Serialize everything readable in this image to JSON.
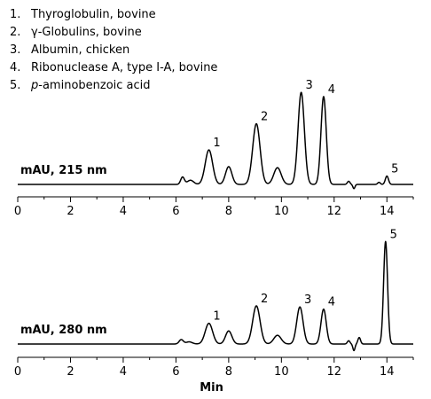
{
  "legend": [
    {
      "num": "1.",
      "text": "Thyroglobulin, bovine"
    },
    {
      "num": "2.",
      "text": "γ-Globulins, bovine"
    },
    {
      "num": "3.",
      "text": "Albumin, chicken"
    },
    {
      "num": "4.",
      "text": "Ribonuclease A, type I-A, bovine"
    },
    {
      "num": "5.",
      "text": "p-aminobenzoic acid",
      "italic_prefix": "p",
      "rest": "-aminobenzoic acid"
    }
  ],
  "chart_data": [
    {
      "type": "line",
      "trace_label": "mAU, 215 nm",
      "xlim": [
        0,
        15
      ],
      "xticks": [
        0,
        2,
        4,
        6,
        8,
        10,
        12,
        14
      ],
      "xtick_labels": [
        "0",
        "2",
        "4",
        "6",
        "8",
        "10",
        "12",
        "14"
      ],
      "ylim": [
        0,
        1
      ],
      "baseline": 0.02,
      "peaks": [
        {
          "t": 6.25,
          "h": 0.07,
          "w": 0.07
        },
        {
          "t": 6.55,
          "h": 0.04,
          "w": 0.12
        },
        {
          "t": 7.25,
          "h": 0.33,
          "w": 0.14
        },
        {
          "t": 8.0,
          "h": 0.17,
          "w": 0.12
        },
        {
          "t": 9.05,
          "h": 0.58,
          "w": 0.14
        },
        {
          "t": 9.85,
          "h": 0.16,
          "w": 0.14
        },
        {
          "t": 10.75,
          "h": 0.88,
          "w": 0.12
        },
        {
          "t": 11.6,
          "h": 0.84,
          "w": 0.1
        },
        {
          "t": 12.55,
          "h": 0.03,
          "w": 0.05
        },
        {
          "t": 12.75,
          "h": -0.04,
          "w": 0.04
        },
        {
          "t": 13.7,
          "h": 0.02,
          "w": 0.05
        },
        {
          "t": 14.0,
          "h": 0.08,
          "w": 0.06
        }
      ],
      "peak_labels": [
        {
          "label": "1",
          "t": 7.25,
          "h": 0.33
        },
        {
          "label": "2",
          "t": 9.05,
          "h": 0.58
        },
        {
          "label": "3",
          "t": 10.75,
          "h": 0.88
        },
        {
          "label": "4",
          "t": 11.6,
          "h": 0.84
        },
        {
          "label": "5",
          "t": 14.0,
          "h": 0.08
        }
      ]
    },
    {
      "type": "line",
      "trace_label": "mAU, 280 nm",
      "xlabel": "Min",
      "xlim": [
        0,
        15
      ],
      "xticks": [
        0,
        2,
        4,
        6,
        8,
        10,
        12,
        14
      ],
      "xtick_labels": [
        "0",
        "2",
        "4",
        "6",
        "8",
        "10",
        "12",
        "14"
      ],
      "ylim": [
        0,
        1
      ],
      "baseline": 0.02,
      "peaks": [
        {
          "t": 6.2,
          "h": 0.04,
          "w": 0.08
        },
        {
          "t": 6.5,
          "h": 0.02,
          "w": 0.12
        },
        {
          "t": 7.25,
          "h": 0.19,
          "w": 0.14
        },
        {
          "t": 8.0,
          "h": 0.12,
          "w": 0.12
        },
        {
          "t": 9.05,
          "h": 0.35,
          "w": 0.14
        },
        {
          "t": 9.85,
          "h": 0.08,
          "w": 0.14
        },
        {
          "t": 10.7,
          "h": 0.34,
          "w": 0.12
        },
        {
          "t": 11.6,
          "h": 0.32,
          "w": 0.1
        },
        {
          "t": 12.55,
          "h": 0.03,
          "w": 0.05
        },
        {
          "t": 12.75,
          "h": -0.06,
          "w": 0.04
        },
        {
          "t": 12.95,
          "h": 0.06,
          "w": 0.05
        },
        {
          "t": 13.95,
          "h": 0.94,
          "w": 0.075
        }
      ],
      "peak_labels": [
        {
          "label": "1",
          "t": 7.25,
          "h": 0.19
        },
        {
          "label": "2",
          "t": 9.05,
          "h": 0.35
        },
        {
          "label": "3",
          "t": 10.7,
          "h": 0.34
        },
        {
          "label": "4",
          "t": 11.6,
          "h": 0.32
        },
        {
          "label": "5",
          "t": 13.95,
          "h": 0.94
        }
      ]
    }
  ]
}
